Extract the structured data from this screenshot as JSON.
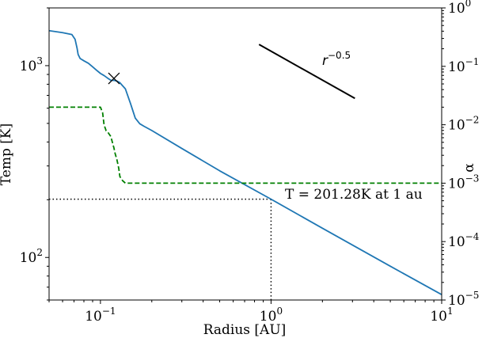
{
  "chart_data": {
    "type": "line",
    "xscale": "log",
    "yscale": "log",
    "xlim": [
      0.05,
      10
    ],
    "ylim": [
      60,
      2000
    ],
    "y2lim": [
      1e-05,
      1
    ],
    "xlabel": "Radius [AU]",
    "ylabel": "Temp [K]",
    "y2label": "α",
    "x_ticks": [
      {
        "value": 0.1,
        "base": "10",
        "exp": "−1"
      },
      {
        "value": 1,
        "base": "10",
        "exp": "0"
      },
      {
        "value": 10,
        "base": "10",
        "exp": "1"
      }
    ],
    "y_ticks": [
      {
        "value": 100,
        "base": "10",
        "exp": "2"
      },
      {
        "value": 1000,
        "base": "10",
        "exp": "3"
      }
    ],
    "y2_ticks": [
      {
        "value": 1e-05,
        "base": "10",
        "exp": "−5"
      },
      {
        "value": 0.0001,
        "base": "10",
        "exp": "−4"
      },
      {
        "value": 0.001,
        "base": "10",
        "exp": "−3"
      },
      {
        "value": 0.01,
        "base": "10",
        "exp": "−2"
      },
      {
        "value": 0.1,
        "base": "10",
        "exp": "−1"
      },
      {
        "value": 1,
        "base": "10",
        "exp": "0"
      }
    ],
    "series": [
      {
        "name": "Temperature",
        "axis": "left",
        "color": "#1f77b4",
        "style": "solid",
        "x": [
          0.05,
          0.06,
          0.068,
          0.071,
          0.073,
          0.074,
          0.076,
          0.08,
          0.085,
          0.09,
          0.095,
          0.1,
          0.105,
          0.11,
          0.115,
          0.12,
          0.125,
          0.13,
          0.14,
          0.15,
          0.16,
          0.17,
          0.18,
          0.2,
          0.3,
          0.5,
          1,
          2,
          5,
          10
        ],
        "y": [
          1522,
          1486,
          1453,
          1373,
          1229,
          1144,
          1090,
          1060,
          1029,
          986,
          946,
          911,
          888,
          862,
          839,
          838,
          831,
          815,
          757,
          635,
          533,
          498,
          483,
          459,
          370,
          283,
          201.28,
          142,
          90,
          64
        ]
      },
      {
        "name": "alpha",
        "axis": "right",
        "color": "#008000",
        "style": "dashed",
        "x": [
          0.05,
          0.1,
          0.103,
          0.105,
          0.108,
          0.11,
          0.115,
          0.12,
          0.122,
          0.125,
          0.128,
          0.13,
          0.135,
          0.14,
          0.16,
          0.3,
          1,
          10
        ],
        "y": [
          0.02,
          0.02,
          0.016,
          0.01,
          0.0079,
          0.0076,
          0.0063,
          0.004,
          0.0032,
          0.0025,
          0.0018,
          0.0013,
          0.0011,
          0.001,
          0.001,
          0.001,
          0.001,
          0.001
        ]
      }
    ],
    "reference_line": {
      "label_base": "r",
      "label_exp": "−0.5",
      "x": [
        0.85,
        3.1
      ],
      "y": [
        1290,
        675
      ]
    },
    "marker": {
      "symbol": "×",
      "x": 0.12,
      "y": 858
    },
    "annotation": "T = 201.28K at 1 au",
    "guide_point": {
      "x": 1,
      "y": 201.28
    }
  }
}
